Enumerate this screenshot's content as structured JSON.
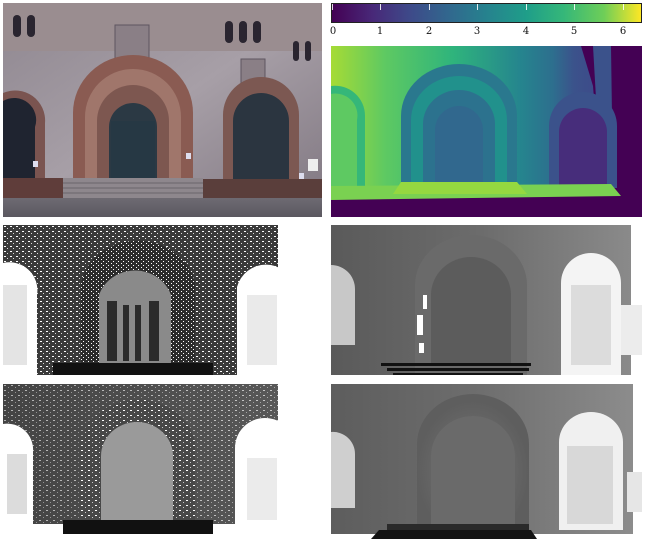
{
  "figure": {
    "panels": [
      {
        "id": "rgb",
        "kind": "rgb-photo"
      },
      {
        "id": "depth-colormap",
        "kind": "depth-viridis"
      },
      {
        "id": "sparse-a",
        "kind": "sparse-depth-grayscale"
      },
      {
        "id": "dense-a",
        "kind": "dense-depth-grayscale"
      },
      {
        "id": "sparse-b",
        "kind": "sparse-depth-grayscale"
      },
      {
        "id": "dense-b",
        "kind": "dense-depth-grayscale"
      }
    ],
    "colorbar": {
      "colormap": "viridis",
      "range": [
        0,
        6.4
      ],
      "tick_labels": [
        "0",
        "1",
        "2",
        "3",
        "4",
        "5",
        "6"
      ]
    },
    "colors": {
      "viridis_start": "#440154",
      "viridis_25": "#3b528b",
      "viridis_50": "#21918c",
      "viridis_75": "#5ec962",
      "viridis_end": "#fde725"
    }
  }
}
